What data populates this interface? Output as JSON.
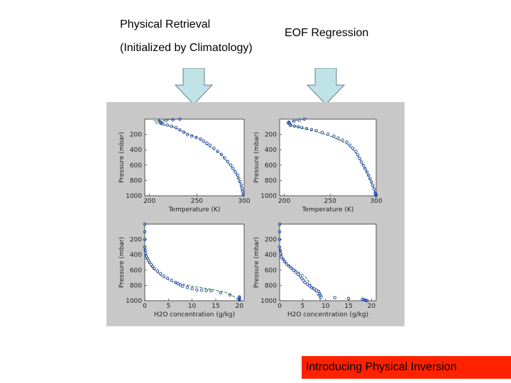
{
  "slide": {
    "left_title_1": "Physical Retrieval",
    "left_title_2": "(Initialized by Climatology)",
    "right_title": "EOF Regression",
    "banner": "Introducing Physical Inversion",
    "arrow_fill": "#bfe3e6",
    "arrow_stroke": "#6a7f80",
    "banner_color": "#ff2200"
  },
  "chart_data": [
    {
      "type": "line",
      "panel": "top-left",
      "xlabel": "Temperature (K)",
      "ylabel": "Pressure (mbar)",
      "xlim": [
        195,
        300
      ],
      "ylim": [
        1000,
        0
      ],
      "xticks": [
        "200",
        "250",
        "300"
      ],
      "yticks": [
        "200",
        "400",
        "600",
        "800",
        "1000"
      ],
      "series": [
        {
          "style": "dashed",
          "points": [
            [
              230,
              0
            ],
            [
              205,
              25
            ],
            [
              208,
              60
            ],
            [
              225,
              100
            ],
            [
              238,
              180
            ],
            [
              252,
              250
            ],
            [
              262,
              350
            ],
            [
              275,
              450
            ],
            [
              285,
              600
            ],
            [
              292,
              720
            ],
            [
              296,
              850
            ],
            [
              299,
              1000
            ]
          ]
        },
        {
          "style": "circles",
          "points": [
            [
              232,
              0
            ],
            [
              210,
              25
            ],
            [
              214,
              60
            ],
            [
              228,
              110
            ],
            [
              240,
              200
            ],
            [
              254,
              260
            ],
            [
              264,
              340
            ],
            [
              276,
              460
            ],
            [
              286,
              600
            ],
            [
              293,
              730
            ],
            [
              297,
              860
            ],
            [
              299,
              990
            ]
          ]
        }
      ]
    },
    {
      "type": "line",
      "panel": "top-right",
      "xlabel": "Temperature (K)",
      "ylabel": "Pressure (mbar)",
      "xlim": [
        195,
        300
      ],
      "ylim": [
        1000,
        0
      ],
      "xticks": [
        "200",
        "250",
        "300"
      ],
      "yticks": [
        "200",
        "400",
        "600",
        "800",
        "1000"
      ],
      "series": [
        {
          "style": "dashed",
          "points": [
            [
              220,
              0
            ],
            [
              202,
              40
            ],
            [
              205,
              80
            ],
            [
              218,
              110
            ],
            [
              232,
              150
            ],
            [
              252,
              230
            ],
            [
              268,
              320
            ],
            [
              278,
              440
            ],
            [
              285,
              580
            ],
            [
              291,
              720
            ],
            [
              296,
              860
            ],
            [
              300,
              1000
            ]
          ]
        },
        {
          "style": "circles",
          "points": [
            [
              222,
              0
            ],
            [
              205,
              40
            ],
            [
              207,
              80
            ],
            [
              219,
              110
            ],
            [
              235,
              150
            ],
            [
              254,
              220
            ],
            [
              268,
              300
            ],
            [
              278,
              420
            ],
            [
              284,
              560
            ],
            [
              290,
              690
            ],
            [
              295,
              820
            ],
            [
              299,
              960
            ],
            [
              300,
              1000
            ]
          ]
        }
      ]
    },
    {
      "type": "line",
      "panel": "bottom-left",
      "xlabel": "H2O concentration (g/kg)",
      "ylabel": "Pressure (mbar)",
      "xlim": [
        0,
        21
      ],
      "ylim": [
        1000,
        0
      ],
      "xticks": [
        "0",
        "5",
        "10",
        "15",
        "20"
      ],
      "yticks": [
        "200",
        "400",
        "600",
        "800",
        "1000"
      ],
      "series": [
        {
          "style": "dashed",
          "points": [
            [
              0,
              0
            ],
            [
              0,
              300
            ],
            [
              0.2,
              420
            ],
            [
              0.8,
              500
            ],
            [
              1.8,
              580
            ],
            [
              3.5,
              680
            ],
            [
              6,
              760
            ],
            [
              10,
              810
            ],
            [
              14,
              850
            ],
            [
              17,
              890
            ],
            [
              19,
              950
            ],
            [
              20,
              1000
            ]
          ]
        },
        {
          "style": "circles",
          "points": [
            [
              0,
              0
            ],
            [
              0,
              300
            ],
            [
              0.3,
              420
            ],
            [
              1,
              500
            ],
            [
              2,
              580
            ],
            [
              4,
              680
            ],
            [
              6.5,
              760
            ],
            [
              8,
              810
            ],
            [
              11,
              860
            ],
            [
              14,
              870
            ],
            [
              20,
              950
            ],
            [
              20,
              990
            ]
          ]
        }
      ]
    },
    {
      "type": "line",
      "panel": "bottom-right",
      "xlabel": "H2O concentration (g/kg)",
      "ylabel": "Pressure (mbar)",
      "xlim": [
        0,
        21
      ],
      "ylim": [
        1000,
        0
      ],
      "xticks": [
        "0",
        "5",
        "10",
        "15",
        "20"
      ],
      "yticks": [
        "200",
        "400",
        "600",
        "800",
        "1000"
      ],
      "series": [
        {
          "style": "dashed",
          "points": [
            [
              0,
              0
            ],
            [
              0,
              300
            ],
            [
              0.5,
              430
            ],
            [
              1.5,
              520
            ],
            [
              3.5,
              600
            ],
            [
              5.5,
              680
            ],
            [
              6.5,
              760
            ],
            [
              7,
              820
            ],
            [
              7.8,
              880
            ],
            [
              8.5,
              950
            ],
            [
              9,
              1000
            ]
          ]
        },
        {
          "style": "circles",
          "points": [
            [
              0,
              0
            ],
            [
              0,
              300
            ],
            [
              0.4,
              430
            ],
            [
              1.5,
              520
            ],
            [
              3,
              600
            ],
            [
              4.5,
              680
            ],
            [
              5.5,
              760
            ],
            [
              7,
              830
            ],
            [
              8.5,
              880
            ],
            [
              9,
              950
            ],
            [
              18,
              980
            ],
            [
              19,
              1000
            ]
          ]
        }
      ]
    }
  ]
}
